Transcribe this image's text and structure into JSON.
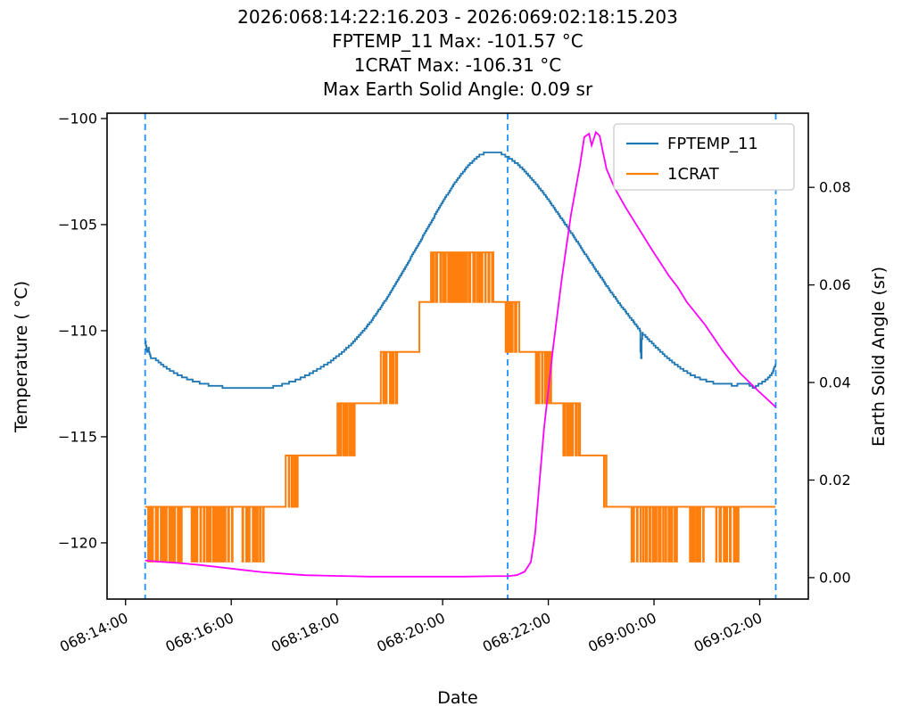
{
  "title": {
    "line1": "2026:068:14:22:16.203 - 2026:069:02:18:15.203",
    "line2": "FPTEMP_11 Max: -101.57 °C",
    "line3": "1CRAT Max: -106.31 °C",
    "line4": "Max Earth Solid Angle: 0.09 sr"
  },
  "chart_data": {
    "type": "line",
    "xlabel": "Date",
    "ylabel_left": "Temperature ( °C)",
    "ylabel_right": "Earth Solid Angle (sr)",
    "x_unit_note": "hours since 2026:068:00:00:00",
    "xlim": [
      13.65,
      26.92
    ],
    "ylim_left": [
      -122.65,
      -99.75
    ],
    "ylim_right": [
      -0.0044,
      0.0952
    ],
    "x_ticks": [
      {
        "t": 14,
        "label": "068:14:00"
      },
      {
        "t": 16,
        "label": "068:16:00"
      },
      {
        "t": 18,
        "label": "068:18:00"
      },
      {
        "t": 20,
        "label": "068:20:00"
      },
      {
        "t": 22,
        "label": "068:22:00"
      },
      {
        "t": 24,
        "label": "069:00:00"
      },
      {
        "t": 26,
        "label": "069:02:00"
      }
    ],
    "y_ticks_left": [
      {
        "v": -100,
        "label": "−100"
      },
      {
        "v": -105,
        "label": "−105"
      },
      {
        "v": -110,
        "label": "−110"
      },
      {
        "v": -115,
        "label": "−115"
      },
      {
        "v": -120,
        "label": "−120"
      }
    ],
    "y_ticks_right": [
      {
        "v": 0.0,
        "label": "0.00"
      },
      {
        "v": 0.02,
        "label": "0.02"
      },
      {
        "v": 0.04,
        "label": "0.04"
      },
      {
        "v": 0.06,
        "label": "0.06"
      },
      {
        "v": 0.08,
        "label": "0.08"
      }
    ],
    "vlines": {
      "times": [
        14.371,
        21.23,
        26.304
      ],
      "color": "#1E90FF",
      "dash": true
    },
    "legend": {
      "entries": [
        {
          "label": "FPTEMP_11",
          "color": "#1f77b4"
        },
        {
          "label": "1CRAT",
          "color": "#ff7f0e"
        }
      ]
    },
    "series": [
      {
        "name": "1CRAT",
        "color": "#ff7f0e",
        "axis": "left",
        "width": 2,
        "segments": [
          {
            "mode": "osc",
            "t0": 14.37,
            "t1": 15.08,
            "hi": -118.3,
            "lo": -120.88
          },
          {
            "mode": "steady",
            "t0": 15.08,
            "t1": 15.2,
            "v": -118.3
          },
          {
            "mode": "osc",
            "t0": 15.2,
            "t1": 16.05,
            "hi": -118.3,
            "lo": -120.88
          },
          {
            "mode": "steady",
            "t0": 16.05,
            "t1": 16.18,
            "v": -118.3
          },
          {
            "mode": "osc",
            "t0": 16.18,
            "t1": 16.65,
            "hi": -118.3,
            "lo": -120.88
          },
          {
            "mode": "steady",
            "t0": 16.65,
            "t1": 17.03,
            "v": -118.3
          },
          {
            "mode": "osc",
            "t0": 17.03,
            "t1": 17.28,
            "hi": -115.88,
            "lo": -118.3
          },
          {
            "mode": "steady",
            "t0": 17.28,
            "t1": 18.01,
            "v": -115.88
          },
          {
            "mode": "osc",
            "t0": 18.01,
            "t1": 18.34,
            "hi": -113.42,
            "lo": -115.88
          },
          {
            "mode": "steady",
            "t0": 18.34,
            "t1": 18.83,
            "v": -113.42
          },
          {
            "mode": "osc",
            "t0": 18.83,
            "t1": 19.14,
            "hi": -111.0,
            "lo": -113.42
          },
          {
            "mode": "steady",
            "t0": 19.14,
            "t1": 19.56,
            "v": -111.0
          },
          {
            "mode": "steady",
            "t0": 19.56,
            "t1": 19.78,
            "v": -108.65
          },
          {
            "mode": "osc",
            "t0": 19.78,
            "t1": 20.96,
            "hi": -106.31,
            "lo": -108.65
          },
          {
            "mode": "steady",
            "t0": 20.96,
            "t1": 21.16,
            "v": -108.65
          },
          {
            "mode": "osc",
            "t0": 21.16,
            "t1": 21.45,
            "hi": -108.65,
            "lo": -111.0
          },
          {
            "mode": "steady",
            "t0": 21.45,
            "t1": 21.75,
            "v": -111.0
          },
          {
            "mode": "osc",
            "t0": 21.75,
            "t1": 22.06,
            "hi": -111.0,
            "lo": -113.42
          },
          {
            "mode": "steady",
            "t0": 22.06,
            "t1": 22.23,
            "v": -113.42
          },
          {
            "mode": "osc",
            "t0": 22.23,
            "t1": 22.6,
            "hi": -113.42,
            "lo": -115.88
          },
          {
            "mode": "steady",
            "t0": 22.6,
            "t1": 23.04,
            "v": -115.88
          },
          {
            "mode": "osc",
            "t0": 23.04,
            "t1": 23.1,
            "hi": -115.88,
            "lo": -118.3
          },
          {
            "mode": "steady",
            "t0": 23.1,
            "t1": 23.53,
            "v": -118.3
          },
          {
            "mode": "osc",
            "t0": 23.53,
            "t1": 24.45,
            "hi": -118.3,
            "lo": -120.88
          },
          {
            "mode": "steady",
            "t0": 24.45,
            "t1": 24.66,
            "v": -118.3
          },
          {
            "mode": "osc",
            "t0": 24.66,
            "t1": 24.96,
            "hi": -118.3,
            "lo": -120.88
          },
          {
            "mode": "steady",
            "t0": 24.96,
            "t1": 25.13,
            "v": -118.3
          },
          {
            "mode": "osc",
            "t0": 25.13,
            "t1": 25.6,
            "hi": -118.3,
            "lo": -120.88
          },
          {
            "mode": "steady",
            "t0": 25.6,
            "t1": 26.3,
            "v": -118.3
          }
        ]
      },
      {
        "name": "FPTEMP_11",
        "color": "#1f77b4",
        "axis": "left",
        "width": 1.8,
        "quantize": 0.1,
        "points": [
          [
            14.37,
            -110.55
          ],
          [
            14.4,
            -111.05
          ],
          [
            14.43,
            -110.82
          ],
          [
            14.47,
            -111.28
          ],
          [
            14.56,
            -111.32
          ],
          [
            14.66,
            -111.55
          ],
          [
            14.86,
            -111.9
          ],
          [
            15.06,
            -112.15
          ],
          [
            15.26,
            -112.35
          ],
          [
            15.46,
            -112.5
          ],
          [
            15.66,
            -112.6
          ],
          [
            15.86,
            -112.66
          ],
          [
            16.06,
            -112.7
          ],
          [
            16.36,
            -112.72
          ],
          [
            16.66,
            -112.7
          ],
          [
            16.86,
            -112.62
          ],
          [
            17.06,
            -112.48
          ],
          [
            17.26,
            -112.3
          ],
          [
            17.46,
            -112.06
          ],
          [
            17.66,
            -111.8
          ],
          [
            17.86,
            -111.48
          ],
          [
            18.06,
            -111.1
          ],
          [
            18.26,
            -110.65
          ],
          [
            18.46,
            -110.12
          ],
          [
            18.66,
            -109.5
          ],
          [
            18.86,
            -108.78
          ],
          [
            19.06,
            -108.0
          ],
          [
            19.26,
            -107.15
          ],
          [
            19.46,
            -106.28
          ],
          [
            19.66,
            -105.4
          ],
          [
            19.86,
            -104.52
          ],
          [
            20.06,
            -103.68
          ],
          [
            20.26,
            -102.92
          ],
          [
            20.46,
            -102.28
          ],
          [
            20.6,
            -101.93
          ],
          [
            20.72,
            -101.7
          ],
          [
            20.85,
            -101.58
          ],
          [
            21.02,
            -101.57
          ],
          [
            21.14,
            -101.68
          ],
          [
            21.27,
            -101.88
          ],
          [
            21.42,
            -102.16
          ],
          [
            21.57,
            -102.52
          ],
          [
            21.72,
            -102.94
          ],
          [
            21.92,
            -103.56
          ],
          [
            22.12,
            -104.26
          ],
          [
            22.32,
            -104.98
          ],
          [
            22.52,
            -105.72
          ],
          [
            22.72,
            -106.48
          ],
          [
            22.92,
            -107.22
          ],
          [
            23.12,
            -107.95
          ],
          [
            23.32,
            -108.65
          ],
          [
            23.52,
            -109.3
          ],
          [
            23.67,
            -109.78
          ],
          [
            23.73,
            -109.98
          ],
          [
            23.75,
            -111.6
          ],
          [
            23.77,
            -110.1
          ],
          [
            23.92,
            -110.48
          ],
          [
            24.12,
            -110.98
          ],
          [
            24.32,
            -111.42
          ],
          [
            24.52,
            -111.8
          ],
          [
            24.72,
            -112.1
          ],
          [
            24.92,
            -112.3
          ],
          [
            25.12,
            -112.45
          ],
          [
            25.32,
            -112.52
          ],
          [
            25.52,
            -112.56
          ],
          [
            25.72,
            -112.52
          ],
          [
            25.82,
            -112.56
          ],
          [
            25.89,
            -112.7
          ],
          [
            25.96,
            -112.56
          ],
          [
            26.06,
            -112.42
          ],
          [
            26.16,
            -112.22
          ],
          [
            26.23,
            -112.0
          ],
          [
            26.3,
            -111.58
          ]
        ]
      },
      {
        "name": "Earth Solid Angle",
        "color": "#ff00ff",
        "axis": "right",
        "width": 1.8,
        "points": [
          [
            14.37,
            0.0035
          ],
          [
            14.7,
            0.0032
          ],
          [
            15.0,
            0.003
          ],
          [
            15.4,
            0.0026
          ],
          [
            15.8,
            0.0021
          ],
          [
            16.2,
            0.0016
          ],
          [
            16.6,
            0.0011
          ],
          [
            17.0,
            0.0008
          ],
          [
            17.4,
            0.0005
          ],
          [
            17.8,
            0.0004
          ],
          [
            18.2,
            0.0003
          ],
          [
            18.6,
            0.0002
          ],
          [
            19.2,
            0.0002
          ],
          [
            19.8,
            0.0002
          ],
          [
            20.4,
            0.0002
          ],
          [
            21.0,
            0.0003
          ],
          [
            21.23,
            0.0003
          ],
          [
            21.4,
            0.0005
          ],
          [
            21.55,
            0.0012
          ],
          [
            21.67,
            0.0032
          ],
          [
            21.75,
            0.009
          ],
          [
            21.92,
            0.0307
          ],
          [
            22.09,
            0.0471
          ],
          [
            22.26,
            0.0617
          ],
          [
            22.43,
            0.0745
          ],
          [
            22.6,
            0.0846
          ],
          [
            22.68,
            0.0903
          ],
          [
            22.77,
            0.091
          ],
          [
            22.82,
            0.0886
          ],
          [
            22.9,
            0.0913
          ],
          [
            22.97,
            0.0906
          ],
          [
            23.1,
            0.0838
          ],
          [
            23.25,
            0.08
          ],
          [
            23.44,
            0.0763
          ],
          [
            23.64,
            0.0728
          ],
          [
            23.95,
            0.0674
          ],
          [
            24.28,
            0.0619
          ],
          [
            24.45,
            0.0595
          ],
          [
            24.62,
            0.0565
          ],
          [
            24.96,
            0.0519
          ],
          [
            25.3,
            0.0465
          ],
          [
            25.63,
            0.0419
          ],
          [
            25.97,
            0.0383
          ],
          [
            26.3,
            0.035
          ]
        ]
      }
    ]
  }
}
